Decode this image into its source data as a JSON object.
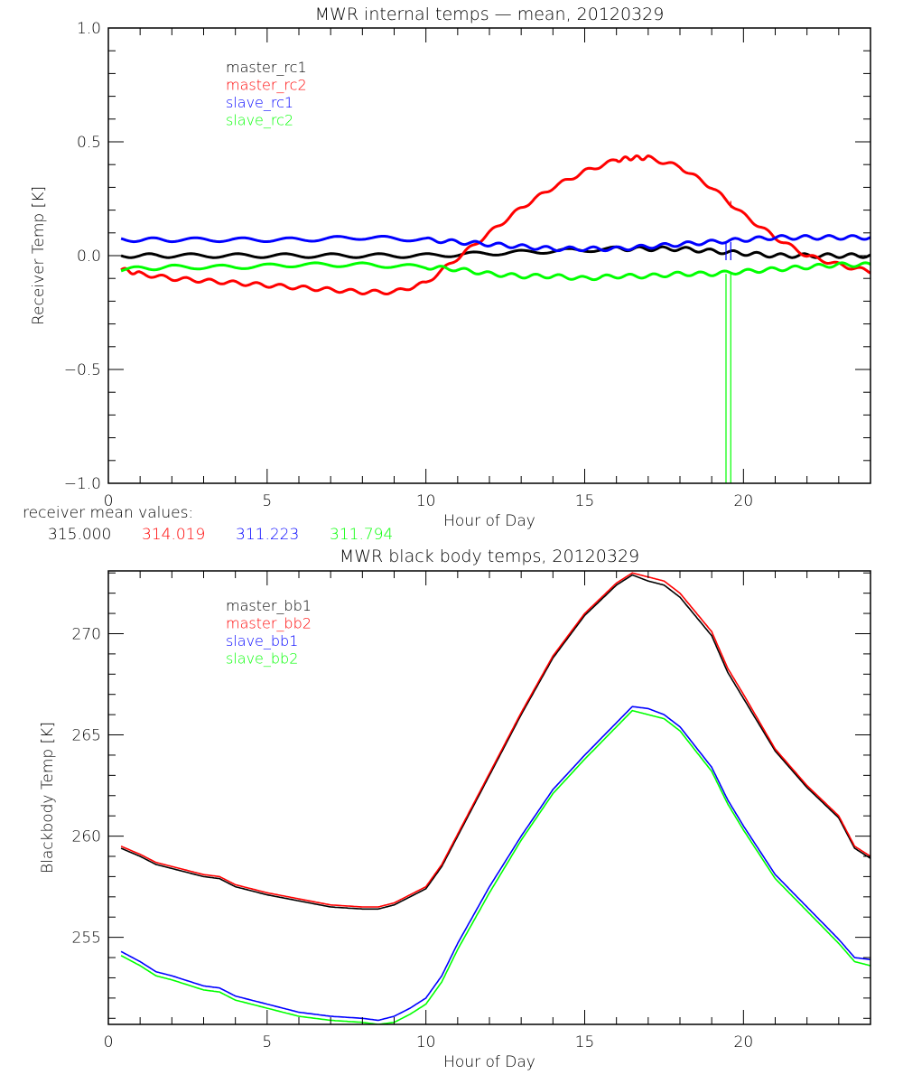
{
  "chart_data": [
    {
      "type": "line",
      "title": "MWR internal temps — mean, 20120329",
      "xlabel": "Hour of Day",
      "ylabel": "Receiver Temp [K]",
      "xlim": [
        0,
        24
      ],
      "ylim": [
        -1.0,
        1.0
      ],
      "xticks": [
        "0",
        "5",
        "10",
        "15",
        "20"
      ],
      "yticks": [
        "-1.0",
        "-0.5",
        "0.0",
        "0.5",
        "1.0"
      ],
      "legend_position": "top-left",
      "grid": false,
      "series": [
        {
          "name": "master_rc1",
          "color": "#000000",
          "x": [
            0.4,
            2,
            4,
            6,
            8,
            10,
            12,
            14,
            16,
            17,
            18,
            19,
            20,
            21,
            22,
            23,
            24
          ],
          "y": [
            0.0,
            0.0,
            0.0,
            0.0,
            0.0,
            0.0,
            0.01,
            0.02,
            0.03,
            0.03,
            0.03,
            0.02,
            0.01,
            0.0,
            0.0,
            0.0,
            0.0
          ]
        },
        {
          "name": "master_rc2",
          "color": "#ff0000",
          "x": [
            0.4,
            1,
            2,
            3,
            4,
            5,
            6,
            7,
            8,
            9,
            10,
            11,
            12,
            13,
            14,
            15,
            16,
            16.5,
            17,
            18,
            19,
            20,
            21,
            22,
            23,
            24
          ],
          "y": [
            -0.06,
            -0.08,
            -0.1,
            -0.11,
            -0.12,
            -0.13,
            -0.14,
            -0.15,
            -0.16,
            -0.16,
            -0.12,
            -0.01,
            0.1,
            0.21,
            0.3,
            0.37,
            0.42,
            0.43,
            0.43,
            0.39,
            0.3,
            0.18,
            0.08,
            0.0,
            -0.04,
            -0.07
          ]
        },
        {
          "name": "slave_rc1",
          "color": "#0000ff",
          "x": [
            0.4,
            2,
            4,
            6,
            8,
            10,
            11,
            12,
            13,
            14,
            15,
            16,
            17,
            18,
            19,
            20,
            21,
            22,
            23,
            24
          ],
          "y": [
            0.07,
            0.07,
            0.07,
            0.07,
            0.08,
            0.07,
            0.06,
            0.05,
            0.04,
            0.03,
            0.03,
            0.03,
            0.04,
            0.05,
            0.06,
            0.07,
            0.08,
            0.08,
            0.08,
            0.08
          ]
        },
        {
          "name": "slave_rc2",
          "color": "#00ff00",
          "x": [
            0.4,
            2,
            4,
            6,
            8,
            10,
            11,
            12,
            13,
            14,
            15,
            16,
            17,
            18,
            19,
            20,
            21,
            22,
            23,
            24
          ],
          "y": [
            -0.06,
            -0.05,
            -0.05,
            -0.04,
            -0.04,
            -0.05,
            -0.06,
            -0.08,
            -0.09,
            -0.09,
            -0.1,
            -0.09,
            -0.09,
            -0.08,
            -0.08,
            -0.07,
            -0.06,
            -0.05,
            -0.04,
            -0.04
          ]
        }
      ],
      "spikes": [
        {
          "series": "slave_rc1",
          "x": [
            19.45,
            19.6
          ],
          "y_from": 0.06,
          "y_to": -0.02
        },
        {
          "series": "slave_rc2",
          "x": [
            19.45,
            19.6
          ],
          "y_from": -0.08,
          "y_to": -1.0
        },
        {
          "series": "master_rc2",
          "x": [
            19.6
          ],
          "y_from": 0.24,
          "y_to": 0.21
        }
      ],
      "annotation": {
        "label": "receiver mean values:",
        "values": [
          {
            "text": "315.000",
            "color": "#000000"
          },
          {
            "text": "314.019",
            "color": "#ff0000"
          },
          {
            "text": "311.223",
            "color": "#0000ff"
          },
          {
            "text": "311.794",
            "color": "#00ff00"
          }
        ]
      }
    },
    {
      "type": "line",
      "title": "MWR black body temps, 20120329",
      "xlabel": "Hour of Day",
      "ylabel": "Blackbody Temp [K]",
      "xlim": [
        0,
        24
      ],
      "ylim": [
        250.7,
        273.1
      ],
      "xticks": [
        "0",
        "5",
        "10",
        "15",
        "20"
      ],
      "yticks": [
        "255",
        "260",
        "265",
        "270"
      ],
      "legend_position": "top-left",
      "grid": false,
      "series": [
        {
          "name": "master_bb1",
          "color": "#000000",
          "x": [
            0.4,
            1,
            1.5,
            2,
            3,
            3.5,
            4,
            5,
            6,
            7,
            8,
            8.5,
            9,
            9.5,
            10,
            10.5,
            11,
            12,
            13,
            14,
            15,
            16,
            16.5,
            17,
            17.5,
            18,
            19,
            19.5,
            20,
            21,
            22,
            23,
            23.5,
            24
          ],
          "y": [
            259.4,
            259.0,
            258.6,
            258.4,
            258.0,
            257.9,
            257.5,
            257.1,
            256.8,
            256.5,
            256.4,
            256.4,
            256.6,
            257.0,
            257.4,
            258.5,
            260.0,
            263.0,
            266.0,
            268.8,
            270.9,
            272.4,
            272.9,
            272.6,
            272.4,
            271.8,
            269.9,
            268.1,
            266.8,
            264.2,
            262.4,
            260.9,
            259.4,
            258.9
          ]
        },
        {
          "name": "master_bb2",
          "color": "#ff0000",
          "x": [
            0.4,
            1,
            1.5,
            2,
            3,
            3.5,
            4,
            5,
            6,
            7,
            8,
            8.5,
            9,
            9.5,
            10,
            10.5,
            11,
            12,
            13,
            14,
            15,
            16,
            16.5,
            17,
            17.5,
            18,
            19,
            19.5,
            20,
            21,
            22,
            23,
            23.5,
            24
          ],
          "y": [
            259.5,
            259.1,
            258.7,
            258.5,
            258.1,
            258.0,
            257.6,
            257.2,
            256.9,
            256.6,
            256.5,
            256.5,
            256.7,
            257.1,
            257.5,
            258.6,
            260.1,
            263.1,
            266.1,
            268.9,
            271.0,
            272.5,
            273.0,
            272.8,
            272.6,
            272.0,
            270.1,
            268.3,
            267.0,
            264.3,
            262.5,
            261.0,
            259.5,
            259.0
          ]
        },
        {
          "name": "slave_bb1",
          "color": "#0000ff",
          "x": [
            0.4,
            1,
            1.5,
            2,
            3,
            3.5,
            4,
            5,
            6,
            7,
            8,
            8.5,
            9,
            9.5,
            10,
            10.5,
            11,
            12,
            13,
            14,
            15,
            16,
            16.5,
            17,
            17.5,
            18,
            19,
            19.5,
            20,
            21,
            22,
            23,
            23.5,
            24
          ],
          "y": [
            254.3,
            253.8,
            253.3,
            253.1,
            252.6,
            252.5,
            252.1,
            251.7,
            251.3,
            251.1,
            251.0,
            250.9,
            251.1,
            251.5,
            252.0,
            253.1,
            254.7,
            257.5,
            260.0,
            262.3,
            264.0,
            265.6,
            266.4,
            266.3,
            266.0,
            265.4,
            263.4,
            261.8,
            260.5,
            258.1,
            256.5,
            254.9,
            254.0,
            253.9
          ]
        },
        {
          "name": "slave_bb2",
          "color": "#00ff00",
          "x": [
            0.4,
            1,
            1.5,
            2,
            3,
            3.5,
            4,
            5,
            6,
            7,
            8,
            8.5,
            9,
            9.5,
            10,
            10.5,
            11,
            12,
            13,
            14,
            15,
            16,
            16.5,
            17,
            17.5,
            18,
            19,
            19.5,
            20,
            21,
            22,
            23,
            23.5,
            24
          ],
          "y": [
            254.1,
            253.6,
            253.1,
            252.9,
            252.4,
            252.3,
            251.9,
            251.5,
            251.1,
            250.9,
            250.8,
            250.7,
            250.8,
            251.2,
            251.7,
            252.8,
            254.4,
            257.2,
            259.8,
            262.1,
            263.8,
            265.4,
            266.2,
            266.0,
            265.8,
            265.2,
            263.2,
            261.6,
            260.3,
            257.9,
            256.3,
            254.7,
            253.8,
            253.6
          ]
        }
      ]
    }
  ]
}
